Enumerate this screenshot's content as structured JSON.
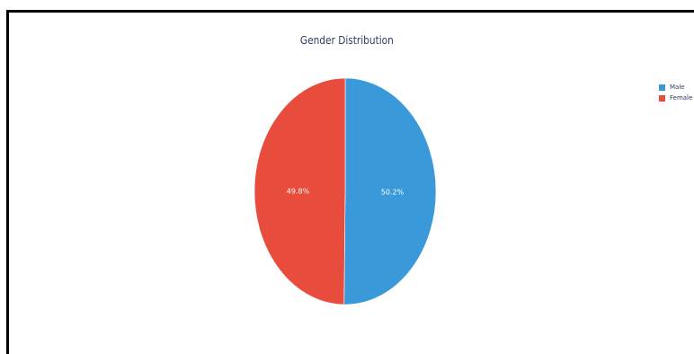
{
  "chart_data": {
    "type": "pie",
    "title": "Gender Distribution",
    "categories": [
      "Male",
      "Female"
    ],
    "values": [
      50.2,
      49.8
    ],
    "labels": [
      "50.2%",
      "49.8%"
    ],
    "colors": [
      "#3a9ad9",
      "#e74c3c"
    ],
    "legend_position": "top-right"
  }
}
